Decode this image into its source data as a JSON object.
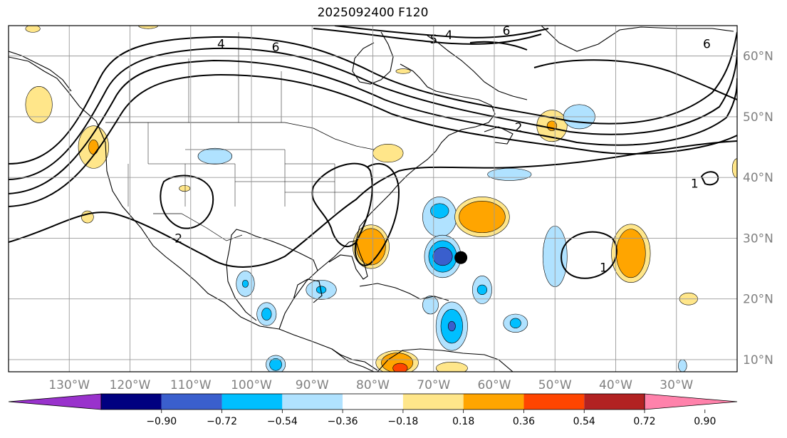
{
  "title": "2025092400 F120",
  "map": {
    "projection": "equirectangular",
    "lon_range": [
      -140,
      -20
    ],
    "lat_range": [
      8,
      65
    ],
    "lon_ticks": [
      -130,
      -120,
      -110,
      -100,
      -90,
      -80,
      -70,
      -60,
      -50,
      -40,
      -30
    ],
    "lon_tick_labels": [
      "130°W",
      "120°W",
      "110°W",
      "100°W",
      "90°W",
      "80°W",
      "70°W",
      "60°W",
      "50°W",
      "40°W",
      "30°W"
    ],
    "lat_ticks": [
      10,
      20,
      30,
      40,
      50,
      60
    ],
    "lat_tick_labels": [
      "10°N",
      "20°N",
      "30°N",
      "40°N",
      "50°N",
      "60°N"
    ],
    "grid": true,
    "coastlines": true,
    "borders": true,
    "marker": {
      "lon": -65.5,
      "lat": 26.8,
      "color": "#000000"
    }
  },
  "colorbar": {
    "levels": [
      -0.9,
      -0.72,
      -0.54,
      -0.36,
      -0.18,
      0.18,
      0.36,
      0.54,
      0.72,
      0.9
    ],
    "level_labels": [
      "−0.90",
      "−0.72",
      "−0.54",
      "−0.36",
      "−0.18",
      "0.18",
      "0.36",
      "0.54",
      "0.72",
      "0.90"
    ],
    "colors": [
      "#9932cc",
      "#000080",
      "#3a5fcd",
      "#00bfff",
      "#b0e2ff",
      "#ffffff",
      "#ffe68a",
      "#ffa500",
      "#ff4500",
      "#b22222",
      "#ff82ab"
    ],
    "extend": "both"
  },
  "contours": {
    "color": "#000000",
    "labels": [
      {
        "text": "4",
        "lon": -105,
        "lat": 62
      },
      {
        "text": "6",
        "lon": -96,
        "lat": 61.5
      },
      {
        "text": "5",
        "lon": -70,
        "lat": 62.8
      },
      {
        "text": "4",
        "lon": -67.5,
        "lat": 63.5
      },
      {
        "text": "6",
        "lon": -58,
        "lat": 64.2
      },
      {
        "text": "2",
        "lon": -112,
        "lat": 30
      },
      {
        "text": "2",
        "lon": -56,
        "lat": 48.3
      },
      {
        "text": "1",
        "lon": -42,
        "lat": 25.2
      },
      {
        "text": "1",
        "lon": -27,
        "lat": 39
      },
      {
        "text": "6",
        "lon": -25,
        "lat": 62
      }
    ]
  },
  "shaded_fields": [
    {
      "color": "#ffe68a",
      "lon": -135,
      "lat": 52,
      "rx": 2.2,
      "ry": 3
    },
    {
      "color": "#ffe68a",
      "lon": -126,
      "lat": 45,
      "rx": 2.5,
      "ry": 3.5
    },
    {
      "color": "#ffa500",
      "lon": -126,
      "lat": 45,
      "rx": 0.8,
      "ry": 1.2
    },
    {
      "color": "#ffe68a",
      "lon": -127,
      "lat": 33.5,
      "rx": 1,
      "ry": 1
    },
    {
      "color": "#ffe68a",
      "lon": -111,
      "lat": 38.2,
      "rx": 0.9,
      "ry": 0.5
    },
    {
      "color": "#b0e2ff",
      "lon": -106,
      "lat": 43.5,
      "rx": 2.8,
      "ry": 1.3
    },
    {
      "color": "#b0e2ff",
      "lon": -101,
      "lat": 22.5,
      "rx": 1.5,
      "ry": 2.1
    },
    {
      "color": "#00bfff",
      "lon": -101,
      "lat": 22.5,
      "rx": 0.5,
      "ry": 0.6
    },
    {
      "color": "#b0e2ff",
      "lon": -97.5,
      "lat": 17.5,
      "rx": 1.6,
      "ry": 1.9
    },
    {
      "color": "#00bfff",
      "lon": -97.5,
      "lat": 17.5,
      "rx": 0.8,
      "ry": 1
    },
    {
      "color": "#b0e2ff",
      "lon": -88.5,
      "lat": 21.5,
      "rx": 2.5,
      "ry": 1.6
    },
    {
      "color": "#00bfff",
      "lon": -88.5,
      "lat": 21.5,
      "rx": 0.8,
      "ry": 0.6
    },
    {
      "color": "#ffe68a",
      "lon": -77.5,
      "lat": 44,
      "rx": 2.5,
      "ry": 1.5
    },
    {
      "color": "#ffe68a",
      "lon": -80.3,
      "lat": 28.6,
      "rx": 3,
      "ry": 3.6
    },
    {
      "color": "#ffa500",
      "lon": -80.3,
      "lat": 28.6,
      "rx": 2.4,
      "ry": 3
    },
    {
      "color": "#b0e2ff",
      "lon": -69,
      "lat": 33.5,
      "rx": 2.8,
      "ry": 3.3
    },
    {
      "color": "#00bfff",
      "lon": -69,
      "lat": 34.5,
      "rx": 1.5,
      "ry": 1.2
    },
    {
      "color": "#b0e2ff",
      "lon": -68.5,
      "lat": 27,
      "rx": 3,
      "ry": 3.5
    },
    {
      "color": "#00bfff",
      "lon": -68.5,
      "lat": 27,
      "rx": 2.3,
      "ry": 2.6
    },
    {
      "color": "#3a5fcd",
      "lon": -68.5,
      "lat": 27,
      "rx": 1.6,
      "ry": 1.5
    },
    {
      "color": "#ffe68a",
      "lon": -62,
      "lat": 33.5,
      "rx": 4.5,
      "ry": 3.3
    },
    {
      "color": "#ffa500",
      "lon": -62,
      "lat": 33.5,
      "rx": 3.8,
      "ry": 2.6
    },
    {
      "color": "#b0e2ff",
      "lon": -57.5,
      "lat": 40.5,
      "rx": 3.6,
      "ry": 1
    },
    {
      "color": "#b0e2ff",
      "lon": -62,
      "lat": 21.5,
      "rx": 1.6,
      "ry": 2.3
    },
    {
      "color": "#00bfff",
      "lon": -62,
      "lat": 21.5,
      "rx": 0.8,
      "ry": 0.8
    },
    {
      "color": "#b0e2ff",
      "lon": -70.5,
      "lat": 19,
      "rx": 1.3,
      "ry": 1.5
    },
    {
      "color": "#b0e2ff",
      "lon": -67,
      "lat": 15.5,
      "rx": 2.6,
      "ry": 4
    },
    {
      "color": "#00bfff",
      "lon": -67,
      "lat": 15.5,
      "rx": 1.8,
      "ry": 2.8
    },
    {
      "color": "#3a5fcd",
      "lon": -67,
      "lat": 15.5,
      "rx": 0.6,
      "ry": 0.8
    },
    {
      "color": "#b0e2ff",
      "lon": -56.5,
      "lat": 16,
      "rx": 2,
      "ry": 1.5
    },
    {
      "color": "#00bfff",
      "lon": -56.5,
      "lat": 16,
      "rx": 0.9,
      "ry": 0.8
    },
    {
      "color": "#ffe68a",
      "lon": -50.5,
      "lat": 48.5,
      "rx": 2.5,
      "ry": 2.6
    },
    {
      "color": "#ffa500",
      "lon": -50.5,
      "lat": 48.5,
      "rx": 0.8,
      "ry": 0.8
    },
    {
      "color": "#b0e2ff",
      "lon": -46,
      "lat": 50,
      "rx": 2.6,
      "ry": 2
    },
    {
      "color": "#b0e2ff",
      "lon": -50,
      "lat": 27,
      "rx": 2,
      "ry": 5
    },
    {
      "color": "#ffe68a",
      "lon": -37.5,
      "lat": 27.5,
      "rx": 3.2,
      "ry": 4.8
    },
    {
      "color": "#ffa500",
      "lon": -37.5,
      "lat": 27.5,
      "rx": 2.4,
      "ry": 4
    },
    {
      "color": "#ffe68a",
      "lon": -28,
      "lat": 20,
      "rx": 1.5,
      "ry": 1
    },
    {
      "color": "#ffe68a",
      "lon": -20,
      "lat": 41.5,
      "rx": 0.8,
      "ry": 1.6
    },
    {
      "color": "#b0e2ff",
      "lon": -96,
      "lat": 9.2,
      "rx": 1.6,
      "ry": 1.5
    },
    {
      "color": "#00bfff",
      "lon": -96,
      "lat": 9.2,
      "rx": 1,
      "ry": 1
    },
    {
      "color": "#ffe68a",
      "lon": -76,
      "lat": 9.5,
      "rx": 3.5,
      "ry": 2
    },
    {
      "color": "#ffa500",
      "lon": -76,
      "lat": 9.5,
      "rx": 2.6,
      "ry": 1.6
    },
    {
      "color": "#ff4500",
      "lon": -75.5,
      "lat": 8.6,
      "rx": 1.2,
      "ry": 0.8
    },
    {
      "color": "#ffe68a",
      "lon": -67,
      "lat": 8.6,
      "rx": 2.6,
      "ry": 1
    },
    {
      "color": "#b0e2ff",
      "lon": -29,
      "lat": 9,
      "rx": 0.7,
      "ry": 1
    },
    {
      "color": "#ffe68a",
      "lon": -136,
      "lat": 64.5,
      "rx": 1.2,
      "ry": 0.6
    },
    {
      "color": "#ffe68a",
      "lon": -117,
      "lat": 65,
      "rx": 1.6,
      "ry": 0.5
    },
    {
      "color": "#ffe68a",
      "lon": -75,
      "lat": 57.5,
      "rx": 1.2,
      "ry": 0.4
    }
  ]
}
